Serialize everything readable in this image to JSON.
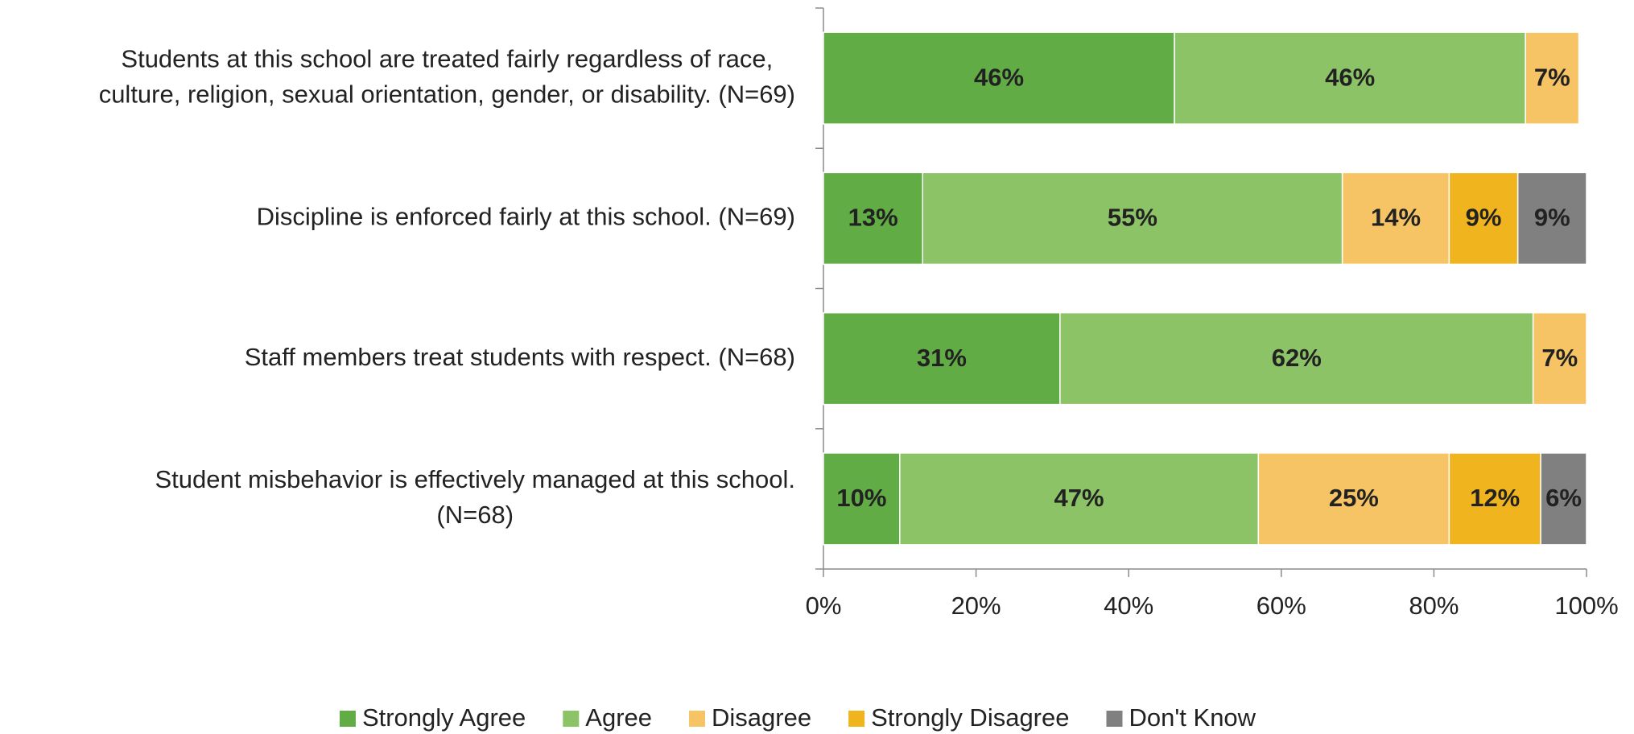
{
  "chart_data": {
    "type": "stacked_barh",
    "categories": [
      [
        "Students at this school are treated fairly regardless of race,",
        "culture, religion, sexual orientation, gender, or disability. (N=69)"
      ],
      [
        "Discipline is enforced fairly at this school. (N=69)"
      ],
      [
        "Staff members treat students with respect. (N=68)"
      ],
      [
        "Student misbehavior is effectively managed at this school.",
        "(N=68)"
      ]
    ],
    "series": [
      {
        "name": "Strongly Agree",
        "color": "#62ac46",
        "label_color": "#000000",
        "values": [
          46,
          13,
          31,
          10
        ],
        "value_labels": [
          "46%",
          "13%",
          "31%",
          "10%"
        ]
      },
      {
        "name": "Agree",
        "color": "#8cc366",
        "label_color": "#000000",
        "values": [
          46,
          55,
          62,
          47
        ],
        "value_labels": [
          "46%",
          "55%",
          "62%",
          "47%"
        ]
      },
      {
        "name": "Disagree",
        "color": "#f7c465",
        "label_color": "#000000",
        "values": [
          7,
          14,
          7,
          25
        ],
        "value_labels": [
          "7%",
          "14%",
          "7%",
          "25%"
        ]
      },
      {
        "name": "Strongly Disagree",
        "color": "#f0b41f",
        "label_color": "#000000",
        "values": [
          null,
          9,
          null,
          12
        ],
        "value_labels": [
          null,
          "9%",
          null,
          "12%"
        ]
      },
      {
        "name": "Don't Know",
        "color": "#808080",
        "label_color": "#ffffff",
        "values": [
          null,
          9,
          null,
          6
        ],
        "value_labels": [
          null,
          "9%",
          null,
          "6%"
        ]
      }
    ],
    "xlim": [
      0,
      100
    ],
    "xticks": [
      {
        "value": 0,
        "label": "0%"
      },
      {
        "value": 20,
        "label": "20%"
      },
      {
        "value": 40,
        "label": "40%"
      },
      {
        "value": 60,
        "label": "60%"
      },
      {
        "value": 80,
        "label": "80%"
      },
      {
        "value": 100,
        "label": "100%"
      }
    ],
    "legend": "bottom"
  }
}
